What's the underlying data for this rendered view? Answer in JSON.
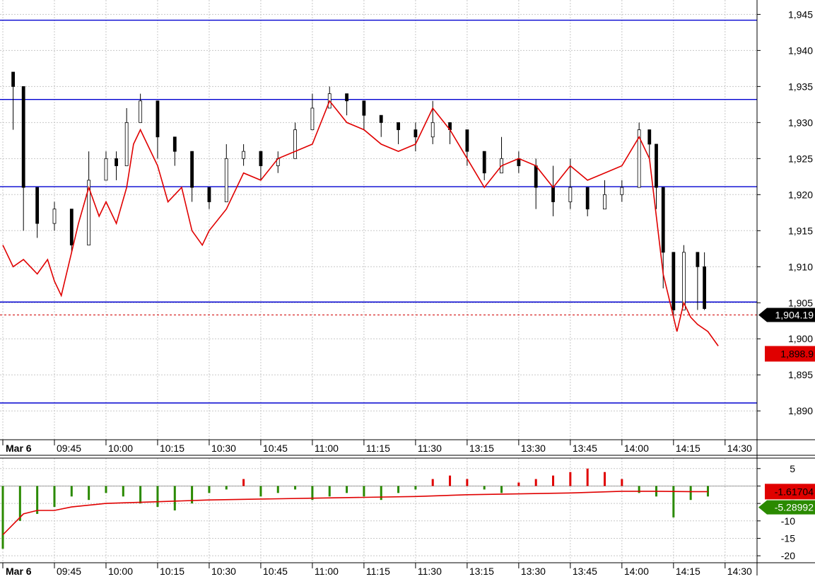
{
  "chart_data": [
    {
      "type": "candlestick",
      "title": "",
      "y_ticks": [
        1890,
        1895,
        1900,
        1905,
        1910,
        1915,
        1920,
        1925,
        1930,
        1935,
        1940,
        1945
      ],
      "y_tick_labels": [
        "1,890",
        "1,895",
        "1,900",
        "1,905",
        "1,910",
        "1,915",
        "1,920",
        "1,925",
        "1,930",
        "1,935",
        "1,940",
        "1,945"
      ],
      "ylim": [
        1886,
        1947
      ],
      "x_range": [
        "09:33",
        "14:33"
      ],
      "x_ticks": [
        "09:30",
        "09:45",
        "10:00",
        "10:15",
        "10:30",
        "10:45",
        "11:00",
        "11:15",
        "11:30",
        "13:15",
        "13:30",
        "13:45",
        "14:00",
        "14:15",
        "14:30"
      ],
      "x_tick_labels": [
        "Mar 6",
        "09:45",
        "10:00",
        "10:15",
        "10:30",
        "10:45",
        "11:00",
        "11:15",
        "11:30",
        "13:15",
        "13:30",
        "13:45",
        "14:00",
        "14:15",
        "14:30"
      ],
      "horizontal_lines": [
        1944.2,
        1933.2,
        1921.1,
        1905.1,
        1891.1
      ],
      "last_price_line": 1904.19,
      "last_price_label": "1,904.19",
      "overlay_label": "1,898.9",
      "price_series": {
        "name": "price",
        "x": [
          "09:33",
          "09:36",
          "09:40",
          "09:45",
          "09:50",
          "09:55",
          "10:00",
          "10:03",
          "10:06",
          "10:10",
          "10:15",
          "10:20",
          "10:25",
          "10:30",
          "10:35",
          "10:40",
          "10:45",
          "10:50",
          "10:55",
          "11:00",
          "11:05",
          "11:10",
          "11:15",
          "11:20",
          "11:25",
          "11:30",
          "13:05",
          "13:10",
          "13:15",
          "13:20",
          "13:25",
          "13:30",
          "13:35",
          "13:40",
          "13:45",
          "13:50",
          "13:55",
          "14:00",
          "14:05",
          "14:08",
          "14:10",
          "14:12",
          "14:15",
          "14:18",
          "14:22",
          "14:24"
        ],
        "y": [
          1935,
          1921,
          1916,
          1918,
          1913,
          1922,
          1925,
          1924,
          1930,
          1933,
          1928,
          1926,
          1921,
          1919,
          1925,
          1926,
          1924,
          1925,
          1929,
          1932,
          1934,
          1933,
          1931,
          1930,
          1929,
          1928,
          1930,
          1929,
          1926,
          1923,
          1925,
          1924,
          1921,
          1919,
          1921,
          1918,
          1920,
          1921,
          1929,
          1927,
          1921,
          1912,
          1904,
          1912,
          1910,
          1904.19
        ],
        "lows": [
          1929,
          1915,
          1914,
          1915,
          1912,
          1920,
          1922,
          1922,
          1927,
          1931,
          1925,
          1924,
          1919,
          1918,
          1923,
          1924,
          1922,
          1923,
          1927,
          1930,
          1932,
          1931,
          1929,
          1928,
          1927,
          1926,
          1927,
          1927,
          1924,
          1922,
          1923,
          1923,
          1918,
          1917,
          1918,
          1917,
          1918,
          1919,
          1927,
          1925,
          1918,
          1907,
          1903,
          1905,
          1904,
          1904
        ],
        "highs": [
          1936,
          1923,
          1918,
          1919,
          1916,
          1926,
          1926,
          1926,
          1932,
          1934,
          1929,
          1927,
          1923,
          1921,
          1927,
          1927,
          1926,
          1926,
          1930,
          1934,
          1935,
          1934,
          1932,
          1931,
          1930,
          1930,
          1933,
          1930,
          1928,
          1926,
          1928,
          1926,
          1925,
          1924,
          1925,
          1921,
          1922,
          1922,
          1930,
          1929,
          1923,
          1914,
          1910,
          1913,
          1912,
          1912
        ]
      },
      "overlay_series": {
        "name": "",
        "color": "#e00000",
        "x": [
          "09:30",
          "09:33",
          "09:36",
          "09:40",
          "09:43",
          "09:45",
          "09:47",
          "09:50",
          "09:52",
          "09:55",
          "09:58",
          "10:00",
          "10:03",
          "10:06",
          "10:08",
          "10:10",
          "10:15",
          "10:18",
          "10:22",
          "10:25",
          "10:28",
          "10:30",
          "10:35",
          "10:40",
          "10:45",
          "10:50",
          "10:55",
          "11:00",
          "11:05",
          "11:10",
          "11:15",
          "11:20",
          "11:25",
          "11:30",
          "13:05",
          "13:10",
          "13:15",
          "13:20",
          "13:25",
          "13:30",
          "13:35",
          "13:40",
          "13:45",
          "13:50",
          "13:55",
          "14:00",
          "14:05",
          "14:08",
          "14:10",
          "14:12",
          "14:14",
          "14:16",
          "14:18",
          "14:20",
          "14:22",
          "14:25",
          "14:28"
        ],
        "y": [
          1913,
          1910,
          1911,
          1909,
          1911,
          1908,
          1906,
          1912,
          1916,
          1921,
          1917,
          1919,
          1916,
          1921,
          1927,
          1929,
          1924,
          1919,
          1921,
          1915,
          1913,
          1915,
          1918,
          1923,
          1922,
          1925,
          1926,
          1927,
          1933,
          1930,
          1929,
          1927,
          1926,
          1927,
          1932,
          1929,
          1925,
          1921,
          1924,
          1925,
          1924,
          1921,
          1924,
          1922,
          1923,
          1924,
          1928,
          1925,
          1917,
          1909,
          1905,
          1901,
          1905,
          1903,
          1902,
          1901,
          1899
        ]
      }
    },
    {
      "type": "bar",
      "title": "",
      "y_ticks": [
        5,
        0,
        -5,
        -10,
        -15,
        -20
      ],
      "y_tick_labels": [
        "5",
        "0",
        "-5",
        "-10",
        "-15",
        "-20"
      ],
      "ylim": [
        -22,
        8
      ],
      "values_label_red": "-1.61704",
      "values_label_green": "-5.28992",
      "positive_color": "#e00000",
      "negative_color": "#2a8a00",
      "bars": {
        "x": [
          "09:30",
          "09:35",
          "09:40",
          "09:45",
          "09:50",
          "09:55",
          "10:00",
          "10:05",
          "10:10",
          "10:15",
          "10:20",
          "10:25",
          "10:30",
          "10:35",
          "10:40",
          "10:45",
          "10:50",
          "10:55",
          "11:00",
          "11:05",
          "11:10",
          "11:15",
          "11:20",
          "11:25",
          "11:30",
          "13:05",
          "13:10",
          "13:15",
          "13:20",
          "13:25",
          "13:30",
          "13:35",
          "13:40",
          "13:45",
          "13:50",
          "13:55",
          "14:00",
          "14:05",
          "14:10",
          "14:15",
          "14:20",
          "14:25"
        ],
        "values": [
          -18,
          -10,
          -8,
          -6,
          -3,
          -4,
          -2,
          -3,
          -5,
          -6,
          -7,
          -5,
          -2,
          -1,
          2,
          -3,
          -2,
          -1,
          -4,
          -3,
          -2,
          -3,
          -4,
          -2,
          -1,
          2,
          3,
          2,
          -1,
          -2,
          1,
          2,
          3,
          4,
          5,
          4,
          2,
          -2,
          -3,
          -9,
          -4,
          -3
        ]
      },
      "line": {
        "color": "#e00000",
        "x": [
          "09:30",
          "09:33",
          "09:36",
          "09:40",
          "09:45",
          "09:50",
          "10:00",
          "10:15",
          "10:30",
          "11:00",
          "11:30",
          "13:15",
          "13:45",
          "14:00",
          "14:10",
          "14:20",
          "14:25"
        ],
        "y": [
          -14,
          -11,
          -8,
          -7,
          -7,
          -6,
          -5,
          -4.5,
          -4,
          -3.5,
          -3,
          -2.5,
          -2,
          -1.5,
          -1.5,
          -1.6,
          -1.6
        ]
      }
    }
  ]
}
